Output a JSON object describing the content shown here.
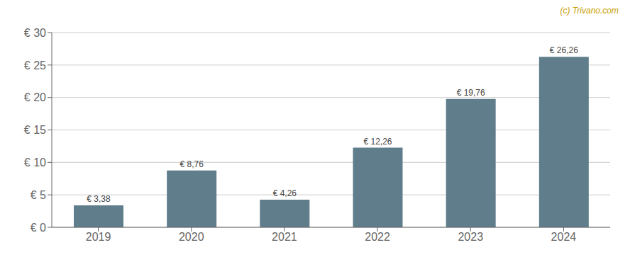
{
  "chart_data": {
    "type": "bar",
    "annotation": "(c) Trivano.com",
    "categories": [
      "2019",
      "2020",
      "2021",
      "2022",
      "2023",
      "2024"
    ],
    "values": [
      3.38,
      8.76,
      4.26,
      12.26,
      19.76,
      26.26
    ],
    "value_labels": [
      "€ 3,38",
      "€ 8,76",
      "€ 4,26",
      "€ 12,26",
      "€ 19,76",
      "€ 26,26"
    ],
    "data_labels": true,
    "color": "#5f7d8b",
    "ylim": [
      0,
      30
    ],
    "yticks": [
      {
        "value": 0,
        "label": "€ 0"
      },
      {
        "value": 5,
        "label": "€ 5"
      },
      {
        "value": 10,
        "label": "€ 10"
      },
      {
        "value": 15,
        "label": "€ 15"
      },
      {
        "value": 20,
        "label": "€ 20"
      },
      {
        "value": 25,
        "label": "€ 25"
      },
      {
        "value": 30,
        "label": "€ 30"
      }
    ],
    "grid": true
  }
}
